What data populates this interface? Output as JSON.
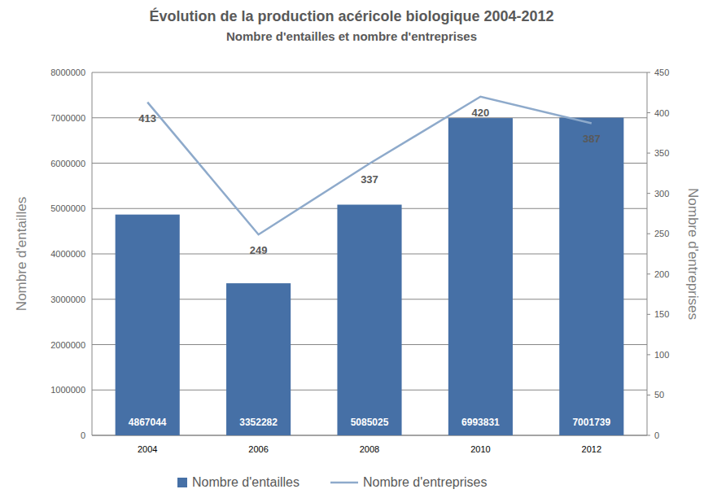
{
  "chart_data": {
    "type": "bar",
    "title": "Évolution de la production acéricole biologique 2004-2012",
    "subtitle": "Nombre d'entailles et nombre d'entreprises",
    "categories": [
      "2004",
      "2006",
      "2008",
      "2010",
      "2012"
    ],
    "series": [
      {
        "name": "Nombre d'entailles",
        "type": "bar",
        "color": "#4670a6",
        "values": [
          4867044,
          3352282,
          5085025,
          6993831,
          7001739
        ]
      },
      {
        "name": "Nombre d'entreprises",
        "type": "line",
        "axis": "y2",
        "color": "#8eaacb",
        "values": [
          413,
          249,
          337,
          420,
          387
        ]
      }
    ],
    "y_label": "Nombre d'entailles",
    "y2_label": "Nombre d'entreprises",
    "ylim": [
      0,
      8000000
    ],
    "yticks": [
      0,
      1000000,
      2000000,
      3000000,
      4000000,
      5000000,
      6000000,
      7000000,
      8000000
    ],
    "y2lim": [
      0,
      450
    ],
    "y2ticks": [
      0,
      50,
      100,
      150,
      200,
      250,
      300,
      350,
      400,
      450
    ],
    "grid": true,
    "data_labels": true,
    "legend": "bottom"
  }
}
